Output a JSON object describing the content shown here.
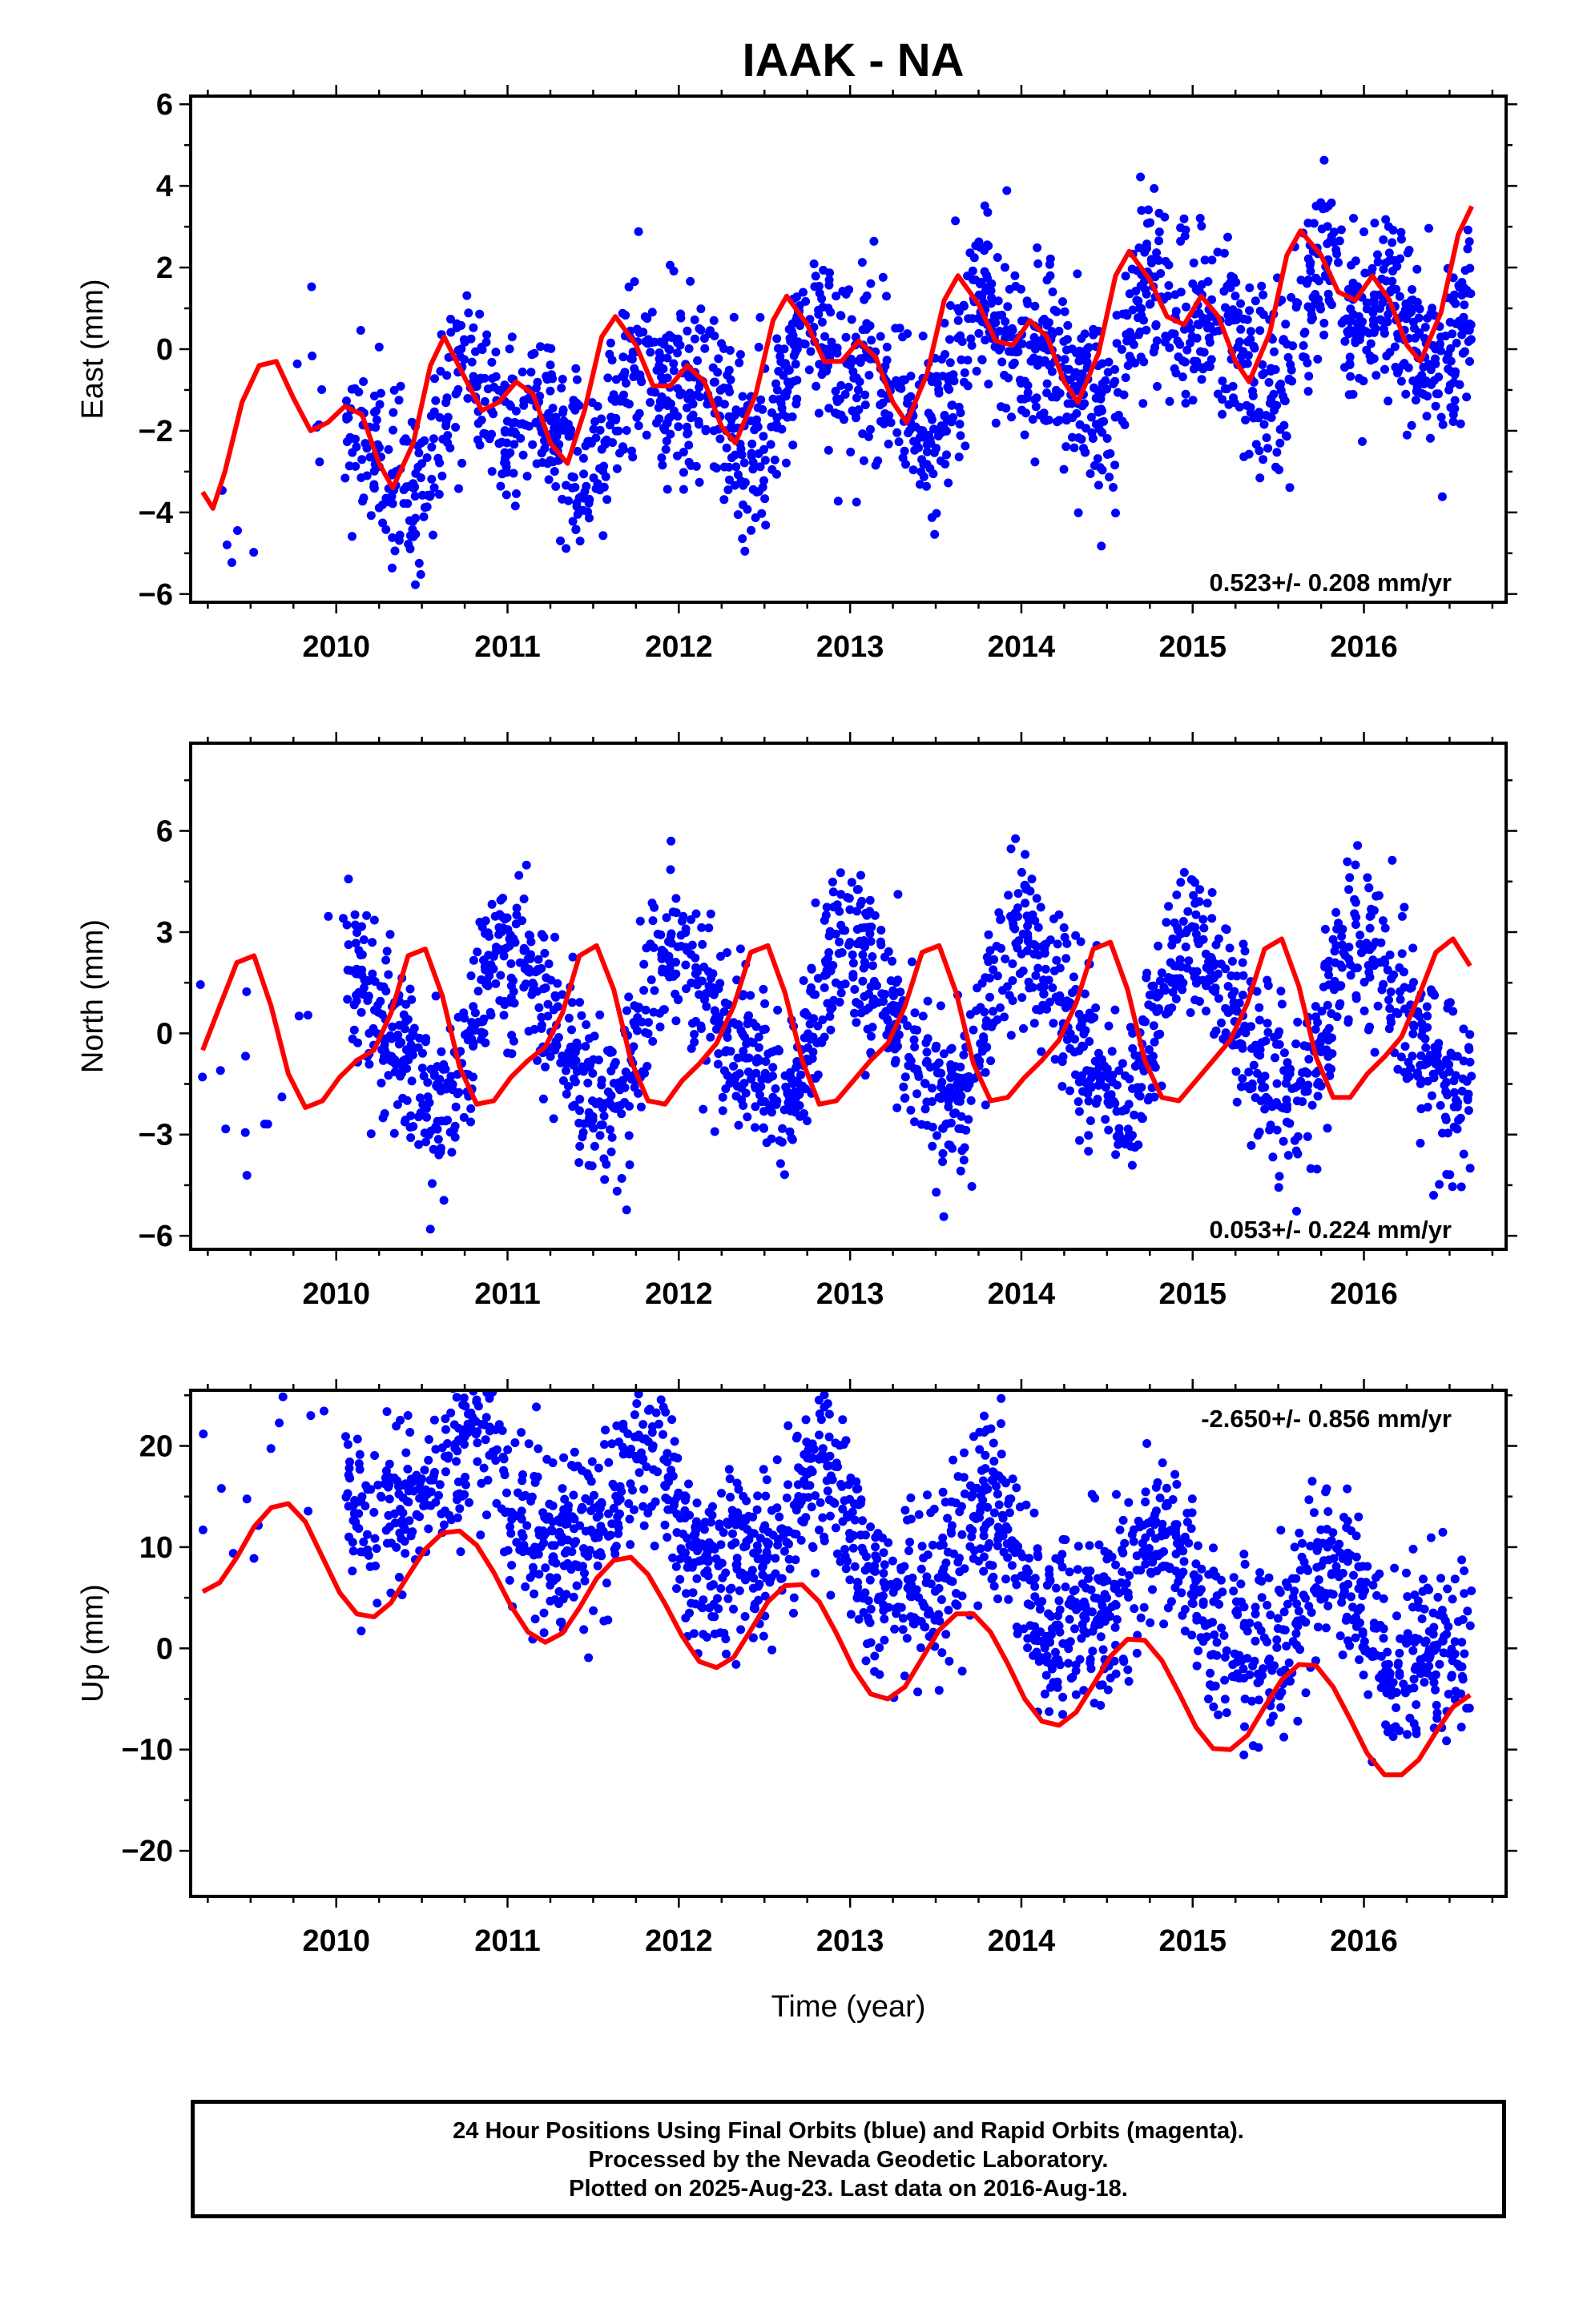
{
  "title": "IAAK - NA",
  "caption": {
    "line1": "24 Hour Positions Using Final Orbits (blue) and Rapid Orbits (magenta).",
    "line2": "Processed by the Nevada Geodetic Laboratory.",
    "line3": "Plotted on 2025-Aug-23. Last data on 2016-Aug-18."
  },
  "colors": {
    "points": "#0000ff",
    "model": "#ff0000",
    "frame": "#000000"
  },
  "chart_data": [
    {
      "type": "scatter",
      "name": "east",
      "ylabel": "East (mm)",
      "xlabel": "",
      "xlim": [
        2009.15,
        2016.83
      ],
      "ylim": [
        -6.2,
        6.2
      ],
      "xticks": [
        2010,
        2011,
        2012,
        2013,
        2014,
        2015,
        2016
      ],
      "yticks": [
        -6,
        -4,
        -2,
        0,
        2,
        4,
        6
      ],
      "rate_label": "0.523+/- 0.208 mm/yr",
      "rate_position": "bottom-right",
      "model": {
        "x": [
          2009.22,
          2009.28,
          2009.35,
          2009.45,
          2009.55,
          2009.65,
          2009.75,
          2009.85,
          2009.95,
          2010.05,
          2010.15,
          2010.25,
          2010.33,
          2010.45,
          2010.55,
          2010.63,
          2010.75,
          2010.85,
          2010.95,
          2011.05,
          2011.15,
          2011.25,
          2011.35,
          2011.45,
          2011.55,
          2011.63,
          2011.75,
          2011.85,
          2011.95,
          2012.05,
          2012.15,
          2012.25,
          2012.33,
          2012.45,
          2012.55,
          2012.63,
          2012.75,
          2012.85,
          2012.95,
          2013.05,
          2013.15,
          2013.25,
          2013.33,
          2013.45,
          2013.55,
          2013.63,
          2013.75,
          2013.85,
          2013.95,
          2014.05,
          2014.15,
          2014.25,
          2014.33,
          2014.45,
          2014.55,
          2014.63,
          2014.75,
          2014.85,
          2014.95,
          2015.05,
          2015.15,
          2015.25,
          2015.33,
          2015.45,
          2015.55,
          2015.63,
          2015.75,
          2015.85,
          2015.95,
          2016.05,
          2016.15,
          2016.25,
          2016.33,
          2016.45,
          2016.55,
          2016.63
        ],
        "y": [
          -3.5,
          -3.9,
          -3.0,
          -1.3,
          -0.4,
          -0.3,
          -1.2,
          -2.0,
          -1.8,
          -1.4,
          -1.6,
          -2.8,
          -3.4,
          -2.3,
          -0.4,
          0.3,
          -0.7,
          -1.5,
          -1.3,
          -0.8,
          -1.1,
          -2.3,
          -2.8,
          -1.5,
          0.3,
          0.8,
          0.1,
          -0.9,
          -0.9,
          -0.4,
          -0.8,
          -1.9,
          -2.3,
          -1.1,
          0.7,
          1.3,
          0.6,
          -0.3,
          -0.3,
          0.2,
          -0.2,
          -1.3,
          -1.8,
          -0.6,
          1.2,
          1.8,
          1.1,
          0.2,
          0.1,
          0.7,
          0.3,
          -0.8,
          -1.3,
          -0.1,
          1.8,
          2.4,
          1.7,
          0.8,
          0.6,
          1.3,
          0.8,
          -0.3,
          -0.8,
          0.4,
          2.3,
          2.9,
          2.3,
          1.4,
          1.2,
          1.8,
          1.2,
          0.1,
          -0.3,
          0.9,
          2.8,
          3.5
        ]
      },
      "seed": 11,
      "trend": 0.523,
      "intercept": -0.8,
      "noise": 1.1,
      "ampA": 1.1,
      "ampS": 0.6,
      "phaseA": 0.62,
      "phaseS": 0.1
    },
    {
      "type": "scatter",
      "name": "north",
      "ylabel": "North (mm)",
      "xlabel": "",
      "xlim": [
        2009.15,
        2016.83
      ],
      "ylim": [
        -6.4,
        8.6
      ],
      "xticks": [
        2010,
        2011,
        2012,
        2013,
        2014,
        2015,
        2016
      ],
      "yticks": [
        -6,
        -3,
        0,
        3,
        6
      ],
      "rate_label": "0.053+/- 0.224 mm/yr",
      "rate_position": "bottom-right",
      "model": {
        "x": [
          2009.22,
          2009.32,
          2009.42,
          2009.52,
          2009.62,
          2009.72,
          2009.82,
          2009.92,
          2010.02,
          2010.12,
          2010.22,
          2010.32,
          2010.42,
          2010.52,
          2010.62,
          2010.72,
          2010.82,
          2010.92,
          2011.02,
          2011.12,
          2011.22,
          2011.32,
          2011.42,
          2011.52,
          2011.62,
          2011.72,
          2011.82,
          2011.92,
          2012.02,
          2012.12,
          2012.22,
          2012.32,
          2012.42,
          2012.52,
          2012.62,
          2012.72,
          2012.82,
          2012.92,
          2013.02,
          2013.12,
          2013.22,
          2013.32,
          2013.42,
          2013.52,
          2013.62,
          2013.72,
          2013.82,
          2013.92,
          2014.02,
          2014.12,
          2014.22,
          2014.32,
          2014.42,
          2014.52,
          2014.62,
          2014.72,
          2014.82,
          2014.92,
          2015.02,
          2015.12,
          2015.22,
          2015.32,
          2015.42,
          2015.52,
          2015.62,
          2015.72,
          2015.82,
          2015.92,
          2016.02,
          2016.12,
          2016.22,
          2016.32,
          2016.42,
          2016.52,
          2016.62
        ],
        "y": [
          -0.5,
          0.8,
          2.1,
          2.3,
          0.8,
          -1.2,
          -2.2,
          -2.0,
          -1.3,
          -0.8,
          -0.5,
          0.6,
          2.3,
          2.5,
          1.1,
          -1.0,
          -2.1,
          -2.0,
          -1.3,
          -0.8,
          -0.4,
          0.6,
          2.3,
          2.6,
          1.3,
          -0.8,
          -2.0,
          -2.1,
          -1.4,
          -0.9,
          -0.3,
          0.8,
          2.4,
          2.6,
          1.2,
          -0.8,
          -2.1,
          -2.0,
          -1.4,
          -0.8,
          -0.3,
          0.8,
          2.4,
          2.6,
          1.2,
          -0.9,
          -2.0,
          -1.9,
          -1.3,
          -0.8,
          -0.2,
          0.9,
          2.5,
          2.7,
          1.3,
          -0.8,
          -1.9,
          -2.0,
          -1.4,
          -0.8,
          -0.2,
          0.9,
          2.5,
          2.8,
          1.4,
          -0.7,
          -1.9,
          -1.9,
          -1.2,
          -0.7,
          -0.1,
          1.1,
          2.4,
          2.8,
          2.0
        ]
      },
      "seed": 23,
      "trend": 0.053,
      "intercept": 0.2,
      "noise": 1.2,
      "ampA": 2.2,
      "ampS": 0.5,
      "phaseA": 0.78,
      "phaseS": 0.3
    },
    {
      "type": "scatter",
      "name": "up",
      "ylabel": "Up (mm)",
      "xlabel": "Time (year)",
      "xlim": [
        2009.15,
        2016.83
      ],
      "ylim": [
        -24.5,
        25.5
      ],
      "xticks": [
        2010,
        2011,
        2012,
        2013,
        2014,
        2015,
        2016
      ],
      "yticks": [
        -20,
        -10,
        0,
        10,
        20
      ],
      "rate_label": "-2.650+/- 0.856 mm/yr",
      "rate_position": "top-right",
      "model": {
        "x": [
          2009.22,
          2009.32,
          2009.42,
          2009.52,
          2009.62,
          2009.72,
          2009.82,
          2009.92,
          2010.02,
          2010.12,
          2010.22,
          2010.32,
          2010.42,
          2010.52,
          2010.62,
          2010.72,
          2010.82,
          2010.92,
          2011.02,
          2011.12,
          2011.22,
          2011.32,
          2011.42,
          2011.52,
          2011.62,
          2011.72,
          2011.82,
          2011.92,
          2012.02,
          2012.12,
          2012.22,
          2012.32,
          2012.42,
          2012.52,
          2012.62,
          2012.72,
          2012.82,
          2012.92,
          2013.02,
          2013.12,
          2013.22,
          2013.32,
          2013.42,
          2013.52,
          2013.62,
          2013.72,
          2013.82,
          2013.92,
          2014.02,
          2014.12,
          2014.22,
          2014.32,
          2014.42,
          2014.52,
          2014.62,
          2014.72,
          2014.82,
          2014.92,
          2015.02,
          2015.12,
          2015.22,
          2015.32,
          2015.42,
          2015.52,
          2015.62,
          2015.72,
          2015.82,
          2015.92,
          2016.02,
          2016.12,
          2016.22,
          2016.32,
          2016.42,
          2016.52,
          2016.62
        ],
        "y": [
          5.6,
          6.5,
          9.0,
          12.0,
          13.9,
          14.3,
          12.5,
          9.0,
          5.5,
          3.4,
          3.1,
          4.5,
          7.2,
          9.8,
          11.4,
          11.6,
          10.2,
          7.5,
          4.2,
          1.6,
          0.6,
          1.5,
          4.0,
          6.9,
          8.7,
          9.0,
          7.3,
          4.4,
          1.2,
          -1.3,
          -1.9,
          -0.9,
          1.8,
          4.6,
          6.2,
          6.3,
          4.6,
          1.5,
          -2.0,
          -4.5,
          -5.0,
          -3.8,
          -1.0,
          1.8,
          3.4,
          3.4,
          1.6,
          -1.5,
          -5.0,
          -7.2,
          -7.6,
          -6.3,
          -3.6,
          -0.8,
          0.9,
          0.8,
          -1.2,
          -4.4,
          -7.8,
          -9.9,
          -10.0,
          -8.6,
          -5.8,
          -3.1,
          -1.6,
          -1.7,
          -3.8,
          -7.0,
          -10.4,
          -12.5,
          -12.5,
          -11.0,
          -8.3,
          -5.8,
          -4.6
        ]
      },
      "seed": 37,
      "trend": -2.65,
      "intercept": 10.0,
      "noise": 4.3,
      "ampA": 5.0,
      "ampS": 1.8,
      "phaseA": 0.55,
      "phaseS": 0.2
    }
  ]
}
